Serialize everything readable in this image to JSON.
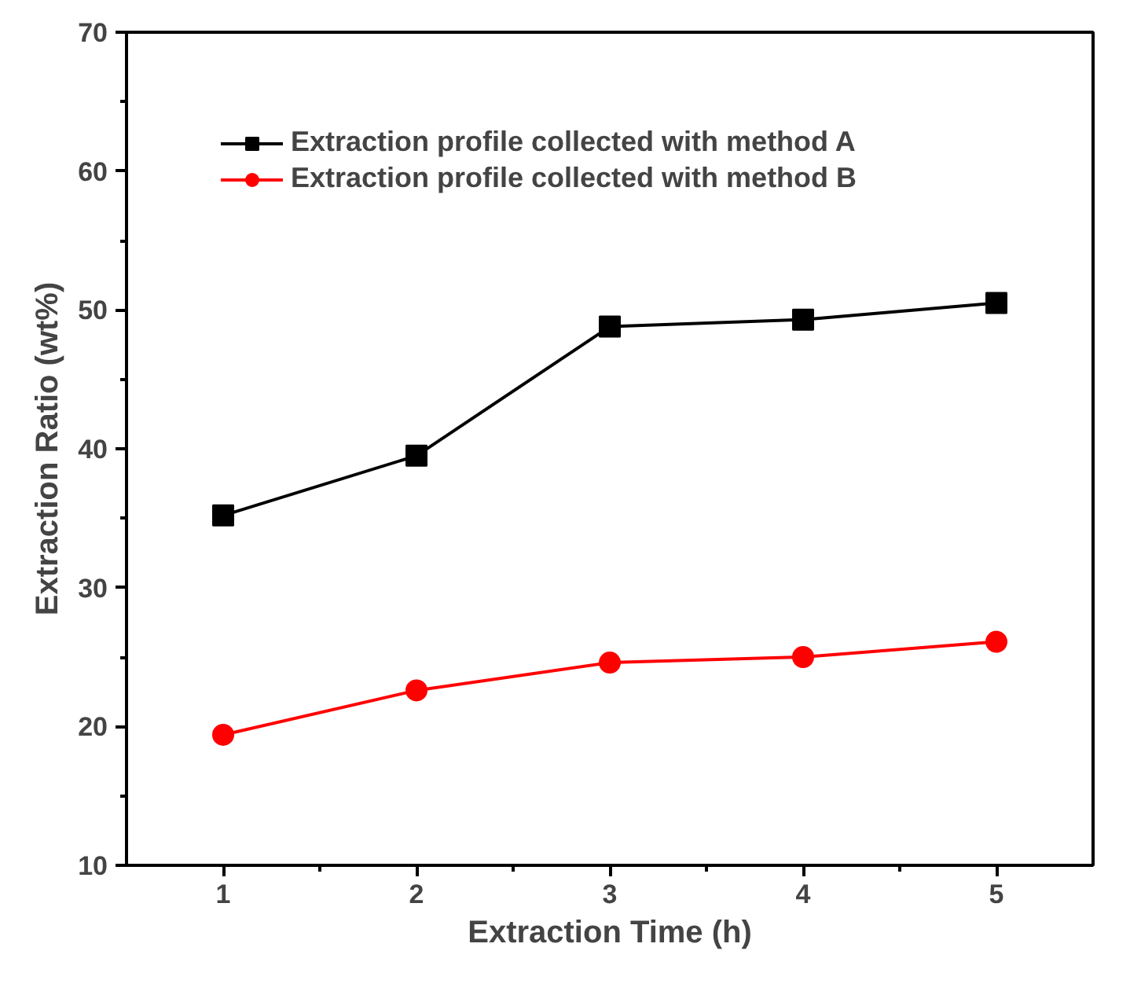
{
  "chart_data": {
    "type": "line",
    "xlabel": "Extraction Time (h)",
    "ylabel": "Extraction Ratio (wt%)",
    "x": [
      1,
      2,
      3,
      4,
      5
    ],
    "series": [
      {
        "name": "Extraction profile collected with method A",
        "color": "#000000",
        "marker": "square",
        "values": [
          35.2,
          39.5,
          48.8,
          49.3,
          50.5
        ]
      },
      {
        "name": "Extraction profile collected with method B",
        "color": "#ff0000",
        "marker": "circle",
        "values": [
          19.4,
          22.6,
          24.6,
          25.0,
          26.1
        ]
      }
    ],
    "xlim": [
      0.5,
      5.5
    ],
    "xticks": [
      1,
      2,
      3,
      4,
      5
    ],
    "ylim": [
      10,
      70
    ],
    "yticks": [
      10,
      20,
      30,
      40,
      50,
      60,
      70
    ],
    "grid": false,
    "legend": "top left",
    "line_style": "solid"
  }
}
